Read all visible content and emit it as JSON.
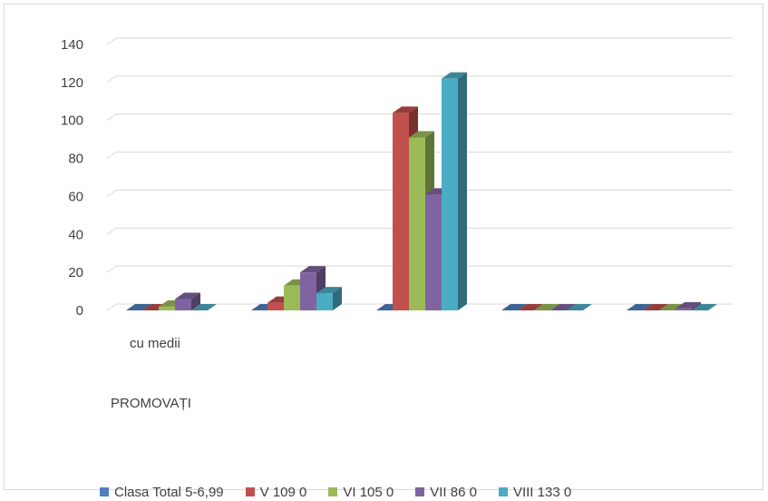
{
  "chart_data": {
    "type": "bar",
    "three_d": true,
    "categories": [
      "cu medii",
      "",
      "",
      "",
      ""
    ],
    "category_group_label": "PROMOVAȚI",
    "ylim": [
      0,
      140
    ],
    "yticks": [
      0,
      20,
      40,
      60,
      80,
      100,
      120,
      140
    ],
    "grid": true,
    "legend_position": "bottom",
    "series": [
      {
        "name": "Clasa Total 5-6,99",
        "color": "#4f81bd",
        "values": [
          0,
          0,
          0,
          0,
          0
        ]
      },
      {
        "name": "V 109 0",
        "color": "#c0504d",
        "values": [
          0,
          4,
          104,
          0,
          0
        ]
      },
      {
        "name": "VI 105 0",
        "color": "#9bbb59",
        "values": [
          2,
          13,
          91,
          0,
          0
        ]
      },
      {
        "name": "VII 86 0",
        "color": "#8064a2",
        "values": [
          6,
          20,
          61,
          0,
          1
        ]
      },
      {
        "name": "VIII 133 0",
        "color": "#4bacc6",
        "values": [
          0,
          9,
          122,
          0,
          0
        ]
      }
    ]
  }
}
